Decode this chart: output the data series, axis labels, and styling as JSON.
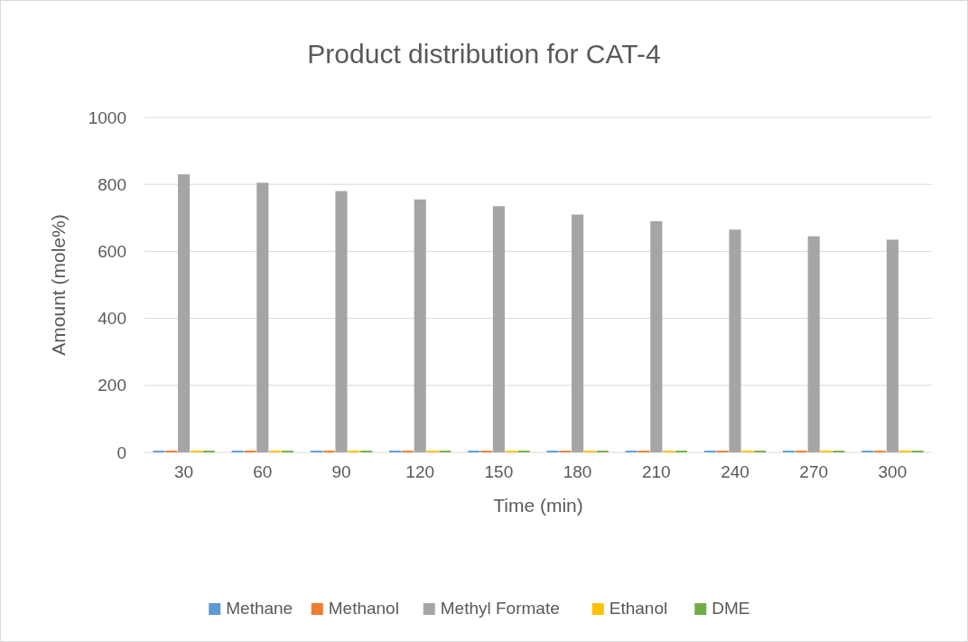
{
  "chart_data": {
    "type": "bar",
    "title": "Product distribution for CAT-4",
    "xlabel": "Time (min)",
    "ylabel": "Amount (mole%)",
    "categories": [
      "30",
      "60",
      "90",
      "120",
      "150",
      "180",
      "210",
      "240",
      "270",
      "300"
    ],
    "series": [
      {
        "name": "Methane",
        "color": "#5b9bd5",
        "values": [
          5,
          5,
          5,
          5,
          5,
          5,
          5,
          5,
          5,
          5
        ]
      },
      {
        "name": "Methanol",
        "color": "#ed7d31",
        "values": [
          5,
          5,
          5,
          5,
          5,
          5,
          5,
          5,
          5,
          5
        ]
      },
      {
        "name": "Methyl Formate",
        "color": "#a5a5a5",
        "values": [
          830,
          805,
          780,
          755,
          735,
          710,
          690,
          665,
          645,
          635
        ]
      },
      {
        "name": "Ethanol",
        "color": "#ffc000",
        "values": [
          5,
          5,
          5,
          5,
          5,
          5,
          5,
          5,
          5,
          5
        ]
      },
      {
        "name": "DME",
        "color": "#70ad47",
        "values": [
          5,
          5,
          5,
          5,
          5,
          5,
          5,
          5,
          5,
          5
        ]
      }
    ],
    "ylim": [
      0,
      1000
    ],
    "yticks": [
      0,
      200,
      400,
      600,
      800,
      1000
    ],
    "grid": "y",
    "legend": "bottom"
  }
}
